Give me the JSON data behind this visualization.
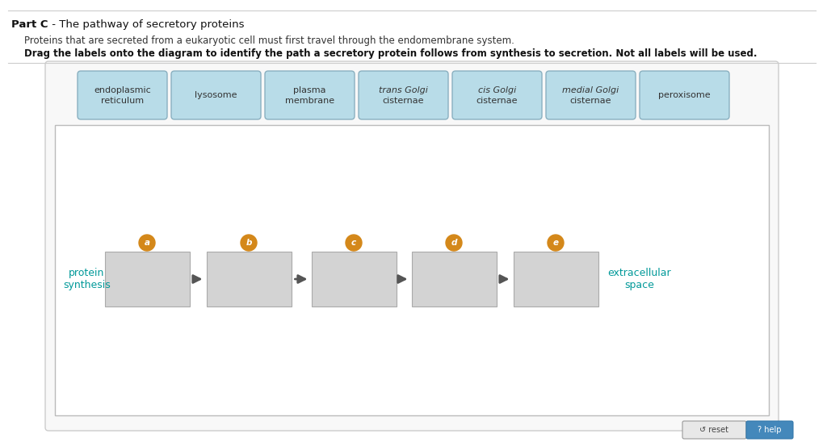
{
  "title_bold": "Part C",
  "title_dash": " - The pathway of secretory proteins",
  "subtitle": "Proteins that are secreted from a eukaryotic cell must first travel through the endomembrane system.",
  "instruction": "Drag the labels onto the diagram to identify the path a secretory protein follows from synthesis to secretion. Not all labels will be used.",
  "drag_labels": [
    "endoplasmic\nreticulum",
    "lysosome",
    "plasma\nmembrane",
    "trans Golgi\ncisternae",
    "cis Golgi\ncisternae",
    "medial Golgi\ncisternae",
    "peroxisome"
  ],
  "box_color_drag": "#b8dce8",
  "box_color_drag_border": "#8ab0c0",
  "box_color_pathway": "#d3d3d3",
  "box_color_pathway_border": "#aaaaaa",
  "pathway_labels": [
    "a",
    "b",
    "c",
    "d",
    "e"
  ],
  "badge_color": "#d4881a",
  "badge_text_color": "#ffffff",
  "arrow_color": "#555555",
  "left_label": "protein\nsynthesis",
  "right_label": "extracellular\nspace",
  "label_color": "#009999",
  "outer_box_color": "#ffffff",
  "outer_box_border": "#cccccc",
  "drag_area_border": "#cccccc",
  "drag_area_fill": "#f0f0f0",
  "background_color": "#ffffff",
  "line_color": "#cccccc",
  "figsize": [
    10.24,
    5.48
  ],
  "dpi": 100
}
